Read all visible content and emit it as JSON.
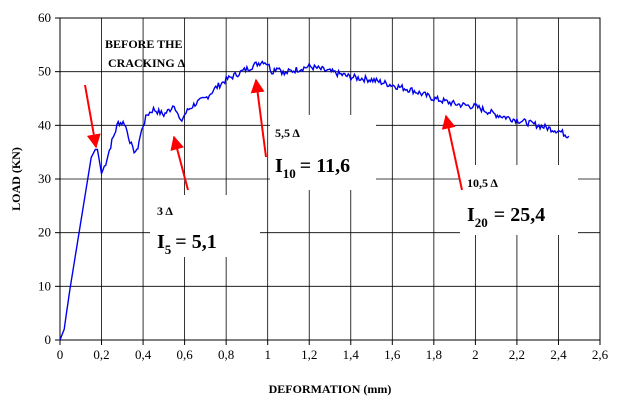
{
  "chart_data": {
    "type": "line",
    "xlabel": "DEFORMATION (mm)",
    "ylabel": "LOAD (KN)",
    "xlim": [
      0,
      2.6
    ],
    "ylim": [
      0,
      60
    ],
    "xticks": [
      "0",
      "0,2",
      "0,4",
      "0,6",
      "0,8",
      "1",
      "1,2",
      "1,4",
      "1,6",
      "1,8",
      "2",
      "2,2",
      "2,4",
      "2,6"
    ],
    "yticks": [
      "0",
      "10",
      "20",
      "30",
      "40",
      "50",
      "60"
    ],
    "grid": true,
    "series": [
      {
        "color": "#0000ee",
        "x": [
          0,
          0.02,
          0.05,
          0.1,
          0.15,
          0.17,
          0.18,
          0.2,
          0.22,
          0.25,
          0.28,
          0.31,
          0.33,
          0.35,
          0.37,
          0.38,
          0.4,
          0.42,
          0.45,
          0.5,
          0.53,
          0.55,
          0.58,
          0.6,
          0.62,
          0.65,
          0.7,
          0.75,
          0.8,
          0.85,
          0.9,
          0.95,
          0.98,
          1.0,
          1.02,
          1.05,
          1.08,
          1.1,
          1.15,
          1.2,
          1.25,
          1.3,
          1.4,
          1.5,
          1.6,
          1.7,
          1.8,
          1.9,
          2.0,
          2.1,
          2.2,
          2.3,
          2.4,
          2.45
        ],
        "y": [
          0,
          2,
          10,
          22,
          34,
          35.5,
          35.5,
          31,
          33,
          37,
          40.5,
          40.5,
          38,
          35.5,
          35,
          37,
          40,
          42,
          43,
          42,
          43,
          44,
          40.5,
          42,
          43,
          44,
          45,
          47,
          48.5,
          49.5,
          50.5,
          51.5,
          52,
          51.5,
          50,
          51,
          49.5,
          50,
          50.5,
          51,
          50.5,
          50,
          49,
          48.5,
          47.5,
          46.5,
          45,
          44,
          43.5,
          42,
          41,
          40,
          39,
          38
        ]
      }
    ],
    "annotations": [
      {
        "text_lines": [
          "BEFORE THE",
          "CRACKING Δ"
        ],
        "x": 0.17,
        "y": 35.5
      },
      {
        "label": "3 Δ",
        "index_text": "I",
        "index_sub": "5",
        "value_text": "= 5,1",
        "x": 0.53,
        "y": 42
      },
      {
        "label": "5,5 Δ",
        "index_text": "I",
        "index_sub": "10",
        "value_text": "= 11,6",
        "x": 0.97,
        "y": 49
      },
      {
        "label": "10,5 Δ",
        "index_text": "I",
        "index_sub": "20",
        "value_text": "= 25,4",
        "x": 1.86,
        "y": 44.5
      }
    ]
  }
}
